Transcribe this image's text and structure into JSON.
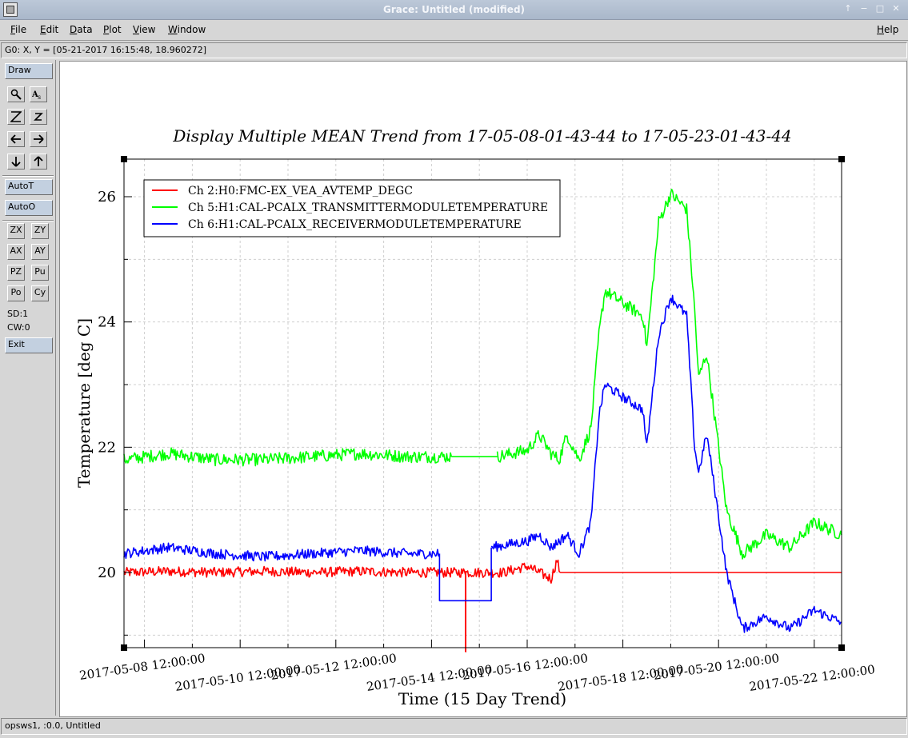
{
  "window": {
    "title": "Grace: Untitled (modified)"
  },
  "menubar": {
    "items": [
      {
        "label": "File",
        "key": "F",
        "rest": "ile"
      },
      {
        "label": "Edit",
        "key": "E",
        "rest": "dit"
      },
      {
        "label": "Data",
        "key": "D",
        "rest": "ata"
      },
      {
        "label": "Plot",
        "key": "P",
        "rest": "lot"
      },
      {
        "label": "View",
        "key": "V",
        "rest": "iew"
      },
      {
        "label": "Window",
        "key": "W",
        "rest": "indow"
      }
    ],
    "help": {
      "label": "Help",
      "key": "H",
      "rest": "elp"
    }
  },
  "locator": {
    "text": "G0: X, Y = [05-21-2017 16:15:48, 18.960272]"
  },
  "toolbar": {
    "draw": "Draw",
    "icons": [
      "zoom-icon",
      "text-icon",
      "zoom-x-icon",
      "zoom-y-icon",
      "left-arrow-icon",
      "right-arrow-icon",
      "down-arrow-icon",
      "up-arrow-icon"
    ],
    "autot": "AutoT",
    "autoo": "AutoO",
    "grid": [
      "ZX",
      "ZY",
      "AX",
      "AY",
      "PZ",
      "Pu",
      "Po",
      "Cy"
    ],
    "sd": "SD:1",
    "cw": "CW:0",
    "exit": "Exit"
  },
  "status": {
    "text": "opsws1, :0.0, Untitled"
  },
  "colors": {
    "red": "#ff0000",
    "green": "#00ff00",
    "blue": "#0000ff",
    "titlebar": "#afbccd"
  },
  "chart_data": {
    "type": "line",
    "title": "Display Multiple MEAN Trend from 17-05-08-01-43-44 to 17-05-23-01-43-44",
    "xlabel": "Time (15 Day Trend)",
    "ylabel": "Temperature [deg C]",
    "x_ticks": [
      "2017-05-08 12:00:00",
      "2017-05-10 12:00:00",
      "2017-05-12 12:00:00",
      "2017-05-14 12:00:00",
      "2017-05-16 12:00:00",
      "2017-05-18 12:00:00",
      "2017-05-20 12:00:00",
      "2017-05-22 12:00:00"
    ],
    "y_ticks": [
      "20",
      "22",
      "24",
      "26"
    ],
    "xlim": [
      "2017-05-08 01:43:44",
      "2017-05-23 01:43:44"
    ],
    "ylim": [
      18.8,
      26.6
    ],
    "grid": true,
    "legend_position": "top-left",
    "series": [
      {
        "name": "Ch 2:H0:FMC-EX_VEA_AVTEMP_DEGC",
        "color": "#ff0000",
        "noise": 0.08,
        "points": [
          [
            "2017-05-08 01:43:44",
            20.0
          ],
          [
            "2017-05-09 00:00:00",
            20.02
          ],
          [
            "2017-05-10 00:00:00",
            20.0
          ],
          [
            "2017-05-11 00:00:00",
            20.02
          ],
          [
            "2017-05-12 00:00:00",
            20.0
          ],
          [
            "2017-05-13 00:00:00",
            20.02
          ],
          [
            "2017-05-14 00:00:00",
            20.0
          ],
          [
            "2017-05-14 20:00:00",
            20.0
          ],
          [
            "2017-05-15 05:00:00",
            20.0
          ],
          [
            "2017-05-15 05:00:00",
            18.8
          ],
          [
            "2017-05-15 05:10:00",
            18.8
          ],
          [
            "2017-05-15 05:10:00",
            20.0
          ],
          [
            "2017-05-16 00:00:00",
            20.0
          ],
          [
            "2017-05-16 12:00:00",
            20.1
          ],
          [
            "2017-05-17 00:00:00",
            19.9
          ],
          [
            "2017-05-17 03:00:00",
            20.2
          ],
          [
            "2017-05-17 04:30:00",
            20.0
          ]
        ]
      },
      {
        "name": "Ch 2:H0:FMC-EX_VEA_AVTEMP_DEGC",
        "color": "#ff0000",
        "noise": 0,
        "points": [
          [
            "2017-05-17 04:30:00",
            20.0
          ],
          [
            "2017-05-23 01:43:44",
            20.0
          ]
        ]
      },
      {
        "name": "Ch 5:H1:CAL-PCALX_TRANSMITTERMODULETEMPERATURE",
        "color": "#00ff00",
        "noise": 0.1,
        "points": [
          [
            "2017-05-08 01:43:44",
            21.8
          ],
          [
            "2017-05-09 00:00:00",
            21.9
          ],
          [
            "2017-05-10 00:00:00",
            21.8
          ],
          [
            "2017-05-11 00:00:00",
            21.8
          ],
          [
            "2017-05-12 00:00:00",
            21.85
          ],
          [
            "2017-05-13 00:00:00",
            21.9
          ],
          [
            "2017-05-14 00:00:00",
            21.85
          ],
          [
            "2017-05-14 22:00:00",
            21.85
          ]
        ]
      },
      {
        "name": "Ch 5:H1:CAL-PCALX_TRANSMITTERMODULETEMPERATURE",
        "color": "#00ff00",
        "noise": 0,
        "points": [
          [
            "2017-05-14 22:00:00",
            21.85
          ],
          [
            "2017-05-15 21:00:00",
            21.85
          ]
        ]
      },
      {
        "name": "Ch 5:H1:CAL-PCALX_TRANSMITTERMODULETEMPERATURE",
        "color": "#00ff00",
        "noise": 0.1,
        "points": [
          [
            "2017-05-15 21:00:00",
            21.85
          ],
          [
            "2017-05-16 12:00:00",
            21.95
          ],
          [
            "2017-05-16 18:00:00",
            22.2
          ],
          [
            "2017-05-17 00:00:00",
            21.9
          ],
          [
            "2017-05-17 04:00:00",
            21.8
          ],
          [
            "2017-05-17 08:00:00",
            22.2
          ],
          [
            "2017-05-17 14:00:00",
            21.8
          ],
          [
            "2017-05-17 20:00:00",
            22.3
          ],
          [
            "2017-05-18 00:00:00",
            23.8
          ],
          [
            "2017-05-18 03:00:00",
            24.5
          ],
          [
            "2017-05-18 12:00:00",
            24.3
          ],
          [
            "2017-05-18 22:00:00",
            24.1
          ],
          [
            "2017-05-19 00:00:00",
            23.6
          ],
          [
            "2017-05-19 06:00:00",
            25.6
          ],
          [
            "2017-05-19 12:00:00",
            26.05
          ],
          [
            "2017-05-19 20:00:00",
            25.8
          ],
          [
            "2017-05-20 00:00:00",
            24.2
          ],
          [
            "2017-05-20 02:00:00",
            23.1
          ],
          [
            "2017-05-20 06:00:00",
            23.5
          ],
          [
            "2017-05-20 08:00:00",
            23.0
          ],
          [
            "2017-05-20 16:00:00",
            21.0
          ],
          [
            "2017-05-21 00:00:00",
            20.3
          ],
          [
            "2017-05-21 12:00:00",
            20.6
          ],
          [
            "2017-05-22 00:00:00",
            20.4
          ],
          [
            "2017-05-22 12:00:00",
            20.8
          ],
          [
            "2017-05-23 01:43:44",
            20.6
          ]
        ]
      },
      {
        "name": "Ch 6:H1:CAL-PCALX_RECEIVERMODULETEMPERATURE",
        "color": "#0000ff",
        "noise": 0.08,
        "points": [
          [
            "2017-05-08 01:43:44",
            20.3
          ],
          [
            "2017-05-09 00:00:00",
            20.4
          ],
          [
            "2017-05-10 00:00:00",
            20.3
          ],
          [
            "2017-05-11 00:00:00",
            20.25
          ],
          [
            "2017-05-12 00:00:00",
            20.3
          ],
          [
            "2017-05-13 00:00:00",
            20.35
          ],
          [
            "2017-05-14 00:00:00",
            20.3
          ],
          [
            "2017-05-14 16:00:00",
            20.3
          ]
        ]
      },
      {
        "name": "Ch 6:H1:CAL-PCALX_RECEIVERMODULETEMPERATURE",
        "color": "#0000ff",
        "noise": 0,
        "points": [
          [
            "2017-05-14 16:00:00",
            20.3
          ],
          [
            "2017-05-14 16:00:00",
            19.55
          ],
          [
            "2017-05-15 18:00:00",
            19.55
          ],
          [
            "2017-05-15 18:00:00",
            20.4
          ]
        ]
      },
      {
        "name": "Ch 6:H1:CAL-PCALX_RECEIVERMODULETEMPERATURE",
        "color": "#0000ff",
        "noise": 0.08,
        "points": [
          [
            "2017-05-15 18:00:00",
            20.4
          ],
          [
            "2017-05-16 12:00:00",
            20.5
          ],
          [
            "2017-05-16 18:00:00",
            20.6
          ],
          [
            "2017-05-17 00:00:00",
            20.4
          ],
          [
            "2017-05-17 08:00:00",
            20.6
          ],
          [
            "2017-05-17 14:00:00",
            20.3
          ],
          [
            "2017-05-17 20:00:00",
            20.8
          ],
          [
            "2017-05-18 00:00:00",
            22.5
          ],
          [
            "2017-05-18 03:00:00",
            23.0
          ],
          [
            "2017-05-18 12:00:00",
            22.8
          ],
          [
            "2017-05-18 22:00:00",
            22.6
          ],
          [
            "2017-05-19 00:00:00",
            22.0
          ],
          [
            "2017-05-19 06:00:00",
            23.8
          ],
          [
            "2017-05-19 12:00:00",
            24.4
          ],
          [
            "2017-05-19 20:00:00",
            24.1
          ],
          [
            "2017-05-20 00:00:00",
            22.0
          ],
          [
            "2017-05-20 02:00:00",
            21.6
          ],
          [
            "2017-05-20 06:00:00",
            22.2
          ],
          [
            "2017-05-20 08:00:00",
            21.8
          ],
          [
            "2017-05-20 16:00:00",
            20.0
          ],
          [
            "2017-05-21 00:00:00",
            19.1
          ],
          [
            "2017-05-21 12:00:00",
            19.3
          ],
          [
            "2017-05-22 00:00:00",
            19.1
          ],
          [
            "2017-05-22 12:00:00",
            19.4
          ],
          [
            "2017-05-23 01:43:44",
            19.2
          ]
        ]
      }
    ]
  }
}
